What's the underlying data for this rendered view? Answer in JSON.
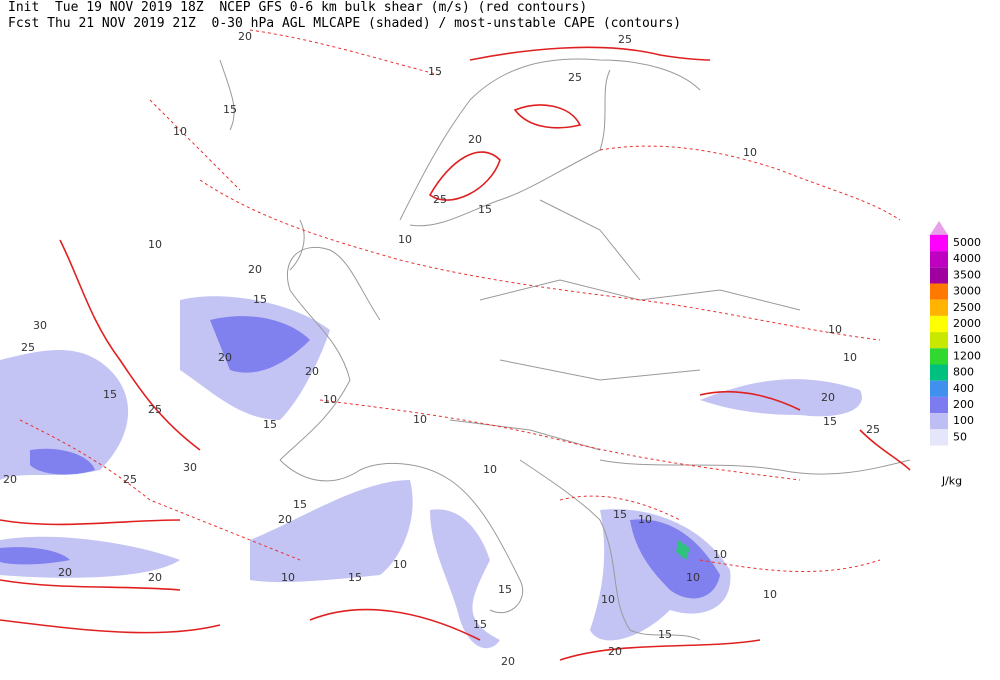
{
  "header": {
    "init": "Init  Tue 19 NOV 2019 18Z",
    "title1": "NCEP GFS 0-6 km bulk shear (m/s) (red contours)",
    "fcst": "Fcst Thu 21 NOV 2019 21Z",
    "title2": "0-30 hPa AGL MLCAPE (shaded) / most-unstable CAPE (contours)"
  },
  "legend": {
    "unit": "J/kg",
    "top_color": "#e8a0e8",
    "levels": [
      {
        "value": 5000,
        "color": "#ff00ff"
      },
      {
        "value": 4000,
        "color": "#c000c0"
      },
      {
        "value": 3500,
        "color": "#a000a0"
      },
      {
        "value": 3000,
        "color": "#ff7800"
      },
      {
        "value": 2500,
        "color": "#ffb400"
      },
      {
        "value": 2000,
        "color": "#ffff00"
      },
      {
        "value": 1600,
        "color": "#c8e800"
      },
      {
        "value": 1200,
        "color": "#30d830"
      },
      {
        "value": 800,
        "color": "#00c080"
      },
      {
        "value": 400,
        "color": "#4090f0"
      },
      {
        "value": 200,
        "color": "#7c7cf0"
      },
      {
        "value": 100,
        "color": "#bebef5"
      },
      {
        "value": 50,
        "color": "#e6e6fa"
      }
    ]
  },
  "contour_labels": [
    20,
    15,
    25,
    25,
    15,
    10,
    10,
    20,
    25,
    15,
    10,
    10,
    20,
    15,
    30,
    25,
    20,
    20,
    15,
    25,
    15,
    10,
    10,
    10,
    10,
    20,
    15,
    25,
    30,
    25,
    20,
    15,
    10,
    10,
    15,
    20,
    10,
    10,
    10,
    10,
    15,
    20,
    20,
    15,
    15,
    10,
    15,
    20,
    20,
    10
  ]
}
